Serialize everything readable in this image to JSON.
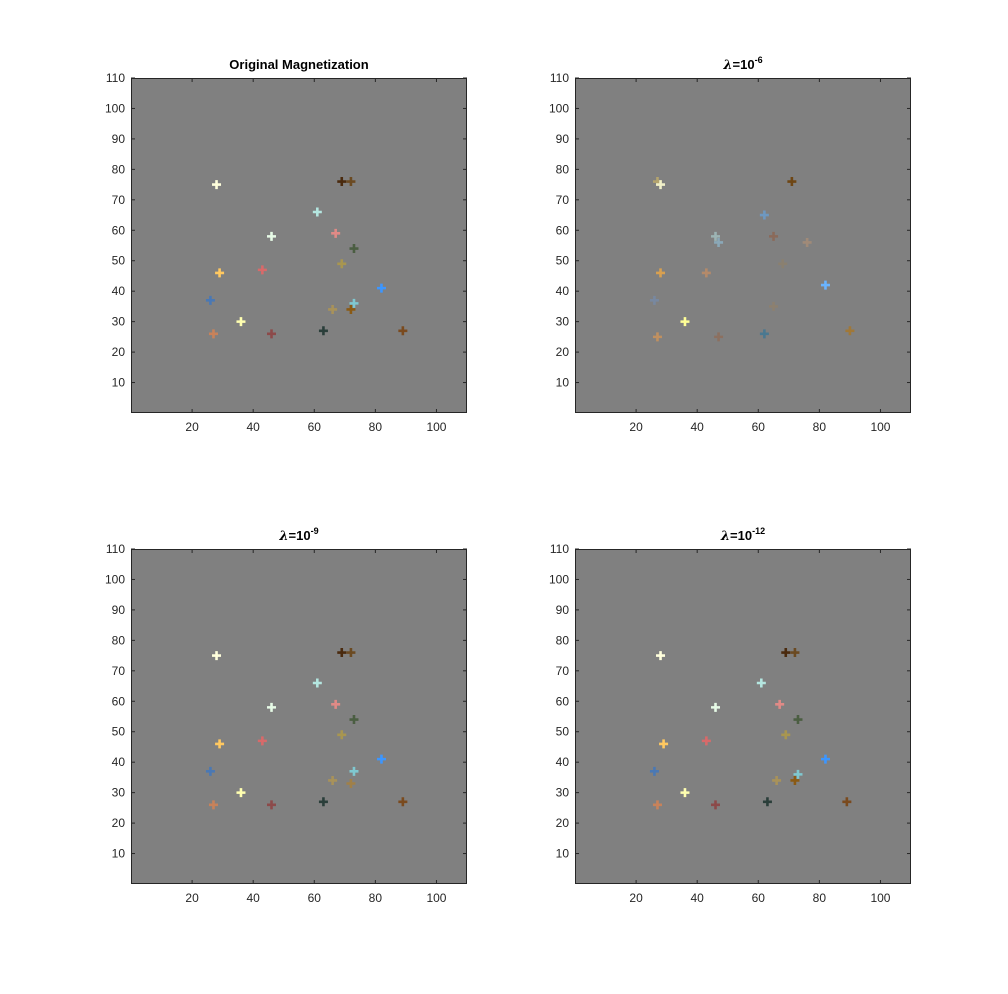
{
  "figure": {
    "background": "#ffffff",
    "axes_background": "#808080"
  },
  "chart_data": [
    {
      "type": "scatter",
      "title": "Original Magnetization",
      "title_symbol": "",
      "title_base": "",
      "title_exponent": "",
      "xlim": [
        0,
        110
      ],
      "ylim": [
        0,
        110
      ],
      "xticks": [
        20,
        40,
        60,
        80,
        100
      ],
      "yticks": [
        10,
        20,
        30,
        40,
        50,
        60,
        70,
        80,
        90,
        100,
        110
      ],
      "grid": false,
      "points": [
        {
          "x": 28,
          "y": 75,
          "color": "#ffffdc"
        },
        {
          "x": 69,
          "y": 76,
          "color": "#4a2a0e"
        },
        {
          "x": 72,
          "y": 76,
          "color": "#6b4a22"
        },
        {
          "x": 61,
          "y": 66,
          "color": "#b4e6e0"
        },
        {
          "x": 46,
          "y": 58,
          "color": "#e6fae6"
        },
        {
          "x": 67,
          "y": 59,
          "color": "#e08a86"
        },
        {
          "x": 73,
          "y": 54,
          "color": "#4b5e42"
        },
        {
          "x": 69,
          "y": 49,
          "color": "#a89650"
        },
        {
          "x": 29,
          "y": 46,
          "color": "#ffc860"
        },
        {
          "x": 43,
          "y": 47,
          "color": "#d86a6a"
        },
        {
          "x": 26,
          "y": 37,
          "color": "#4a78b4"
        },
        {
          "x": 82,
          "y": 41,
          "color": "#3c96ff"
        },
        {
          "x": 73,
          "y": 36,
          "color": "#7fc8d0"
        },
        {
          "x": 66,
          "y": 34,
          "color": "#a8925a"
        },
        {
          "x": 72,
          "y": 34,
          "color": "#8a5a14"
        },
        {
          "x": 36,
          "y": 30,
          "color": "#ffffb0"
        },
        {
          "x": 27,
          "y": 26,
          "color": "#c8825a"
        },
        {
          "x": 46,
          "y": 26,
          "color": "#8c4a4a"
        },
        {
          "x": 63,
          "y": 27,
          "color": "#2a3e3a"
        },
        {
          "x": 89,
          "y": 27,
          "color": "#7a4a1e"
        }
      ]
    },
    {
      "type": "scatter",
      "title": "",
      "title_symbol": "λ",
      "title_base": "=10",
      "title_exponent": "-6",
      "xlim": [
        0,
        110
      ],
      "ylim": [
        0,
        110
      ],
      "xticks": [
        20,
        40,
        60,
        80,
        100
      ],
      "yticks": [
        10,
        20,
        30,
        40,
        50,
        60,
        70,
        80,
        90,
        100,
        110
      ],
      "grid": false,
      "points": [
        {
          "x": 27,
          "y": 76,
          "color": "#b4a46e"
        },
        {
          "x": 28,
          "y": 75,
          "color": "#f0f0c8"
        },
        {
          "x": 71,
          "y": 76,
          "color": "#6e4614"
        },
        {
          "x": 62,
          "y": 65,
          "color": "#6e98c0"
        },
        {
          "x": 46,
          "y": 58,
          "color": "#9cb4b4"
        },
        {
          "x": 47,
          "y": 56,
          "color": "#8aa8b8"
        },
        {
          "x": 65,
          "y": 58,
          "color": "#8a6a5a"
        },
        {
          "x": 76,
          "y": 56,
          "color": "#a08a78"
        },
        {
          "x": 68,
          "y": 49,
          "color": "#8a8070"
        },
        {
          "x": 28,
          "y": 46,
          "color": "#d8a050"
        },
        {
          "x": 43,
          "y": 46,
          "color": "#b48a6a"
        },
        {
          "x": 26,
          "y": 37,
          "color": "#7888a0"
        },
        {
          "x": 82,
          "y": 42,
          "color": "#6ab4ff"
        },
        {
          "x": 65,
          "y": 35,
          "color": "#8c8070"
        },
        {
          "x": 36,
          "y": 30,
          "color": "#ffff96"
        },
        {
          "x": 27,
          "y": 25,
          "color": "#c09060"
        },
        {
          "x": 47,
          "y": 25,
          "color": "#8c7060"
        },
        {
          "x": 62,
          "y": 26,
          "color": "#4a7890"
        },
        {
          "x": 90,
          "y": 27,
          "color": "#a07838"
        }
      ]
    },
    {
      "type": "scatter",
      "title": "",
      "title_symbol": "λ",
      "title_base": "=10",
      "title_exponent": "-9",
      "xlim": [
        0,
        110
      ],
      "ylim": [
        0,
        110
      ],
      "xticks": [
        20,
        40,
        60,
        80,
        100
      ],
      "yticks": [
        10,
        20,
        30,
        40,
        50,
        60,
        70,
        80,
        90,
        100,
        110
      ],
      "grid": false,
      "points": [
        {
          "x": 28,
          "y": 75,
          "color": "#ffffdc"
        },
        {
          "x": 69,
          "y": 76,
          "color": "#4a2a0e"
        },
        {
          "x": 72,
          "y": 76,
          "color": "#6b4a22"
        },
        {
          "x": 61,
          "y": 66,
          "color": "#b4e6e0"
        },
        {
          "x": 46,
          "y": 58,
          "color": "#e6fae6"
        },
        {
          "x": 67,
          "y": 59,
          "color": "#e08a86"
        },
        {
          "x": 73,
          "y": 54,
          "color": "#4b5e42"
        },
        {
          "x": 69,
          "y": 49,
          "color": "#a89650"
        },
        {
          "x": 29,
          "y": 46,
          "color": "#ffc860"
        },
        {
          "x": 43,
          "y": 47,
          "color": "#d86a6a"
        },
        {
          "x": 26,
          "y": 37,
          "color": "#4a78b4"
        },
        {
          "x": 82,
          "y": 41,
          "color": "#3c96ff"
        },
        {
          "x": 73,
          "y": 37,
          "color": "#7fc8d0"
        },
        {
          "x": 66,
          "y": 34,
          "color": "#a8925a"
        },
        {
          "x": 72,
          "y": 33,
          "color": "#a08048"
        },
        {
          "x": 36,
          "y": 30,
          "color": "#ffffb0"
        },
        {
          "x": 27,
          "y": 26,
          "color": "#c8825a"
        },
        {
          "x": 46,
          "y": 26,
          "color": "#8c4a4a"
        },
        {
          "x": 63,
          "y": 27,
          "color": "#2a3e3a"
        },
        {
          "x": 89,
          "y": 27,
          "color": "#7a4a1e"
        }
      ]
    },
    {
      "type": "scatter",
      "title": "",
      "title_symbol": "λ",
      "title_base": "=10",
      "title_exponent": "-12",
      "xlim": [
        0,
        110
      ],
      "ylim": [
        0,
        110
      ],
      "xticks": [
        20,
        40,
        60,
        80,
        100
      ],
      "yticks": [
        10,
        20,
        30,
        40,
        50,
        60,
        70,
        80,
        90,
        100,
        110
      ],
      "grid": false,
      "points": [
        {
          "x": 28,
          "y": 75,
          "color": "#ffffdc"
        },
        {
          "x": 69,
          "y": 76,
          "color": "#4a2a0e"
        },
        {
          "x": 72,
          "y": 76,
          "color": "#6b4a22"
        },
        {
          "x": 61,
          "y": 66,
          "color": "#b4e6e0"
        },
        {
          "x": 46,
          "y": 58,
          "color": "#e6fae6"
        },
        {
          "x": 67,
          "y": 59,
          "color": "#e08a86"
        },
        {
          "x": 73,
          "y": 54,
          "color": "#4b5e42"
        },
        {
          "x": 69,
          "y": 49,
          "color": "#a89650"
        },
        {
          "x": 29,
          "y": 46,
          "color": "#ffc860"
        },
        {
          "x": 43,
          "y": 47,
          "color": "#d86a6a"
        },
        {
          "x": 26,
          "y": 37,
          "color": "#4a78b4"
        },
        {
          "x": 82,
          "y": 41,
          "color": "#3c96ff"
        },
        {
          "x": 73,
          "y": 36,
          "color": "#7fc8d0"
        },
        {
          "x": 66,
          "y": 34,
          "color": "#a8925a"
        },
        {
          "x": 72,
          "y": 34,
          "color": "#8a5a14"
        },
        {
          "x": 36,
          "y": 30,
          "color": "#ffffb0"
        },
        {
          "x": 27,
          "y": 26,
          "color": "#c8825a"
        },
        {
          "x": 46,
          "y": 26,
          "color": "#8c4a4a"
        },
        {
          "x": 63,
          "y": 27,
          "color": "#2a3e3a"
        },
        {
          "x": 89,
          "y": 27,
          "color": "#7a4a1e"
        }
      ]
    }
  ]
}
